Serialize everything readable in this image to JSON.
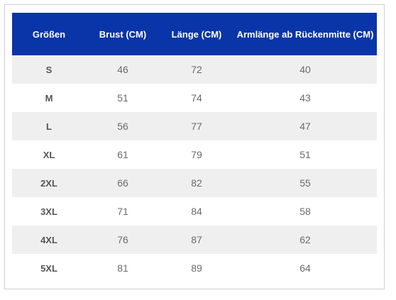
{
  "table": {
    "headers": [
      "Größen",
      "Brust (CM)",
      "Länge (CM)",
      "Armlänge ab Rückenmitte (CM)"
    ],
    "rows": [
      [
        "S",
        "46",
        "72",
        "40"
      ],
      [
        "M",
        "51",
        "74",
        "43"
      ],
      [
        "L",
        "56",
        "77",
        "47"
      ],
      [
        "XL",
        "61",
        "79",
        "51"
      ],
      [
        "2XL",
        "66",
        "82",
        "55"
      ],
      [
        "3XL",
        "71",
        "84",
        "58"
      ],
      [
        "4XL",
        "76",
        "87",
        "62"
      ],
      [
        "5XL",
        "81",
        "89",
        "64"
      ]
    ]
  },
  "colors": {
    "header_bg": "#0a35a8",
    "header_text": "#ffffff",
    "row_alt_bg": "#efefef",
    "cell_text": "#6b6b6b"
  }
}
